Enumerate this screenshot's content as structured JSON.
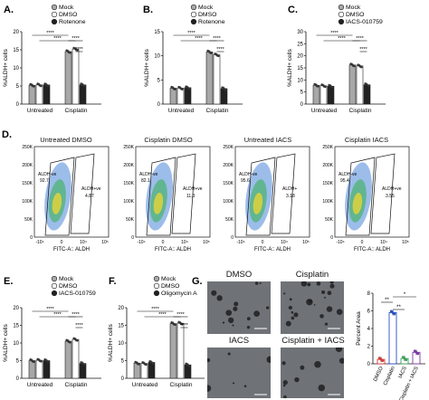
{
  "panels": {
    "A": {
      "label": "A.",
      "ylabel": "%ALDH+ cells",
      "legend": [
        "Mock",
        "DMSO",
        "Rotenone"
      ],
      "groups": [
        "Untreated",
        "Cisplatin"
      ],
      "yticks": [
        "0",
        "5",
        "10",
        "15",
        "20"
      ],
      "ymax": 20,
      "values": [
        [
          5.2,
          5.3,
          5.3
        ],
        [
          14.5,
          15.2,
          5.3
        ]
      ],
      "sig": [
        "****",
        "****",
        "****",
        "****"
      ]
    },
    "B": {
      "label": "B.",
      "ylabel": "%ALDH+ cells",
      "legend": [
        "Mock",
        "DMSO",
        "Rotenone"
      ],
      "groups": [
        "Untreated",
        "Cisplatin"
      ],
      "yticks": [
        "0",
        "5",
        "10",
        "15"
      ],
      "ymax": 15,
      "values": [
        [
          3.3,
          3.3,
          3.4
        ],
        [
          10.8,
          10.2,
          3.2
        ]
      ],
      "sig": [
        "****",
        "****",
        "****",
        "****"
      ]
    },
    "C": {
      "label": "C.",
      "ylabel": "%ALDH+ cells",
      "legend": [
        "Mock",
        "DMSO",
        "IACS-010759"
      ],
      "groups": [
        "Untreated",
        "Cisplatin"
      ],
      "yticks": [
        "0",
        "5",
        "10",
        "15",
        "20",
        "25",
        "30"
      ],
      "ymax": 30,
      "values": [
        [
          7.8,
          7.6,
          7.4
        ],
        [
          16.2,
          15.8,
          8.0
        ]
      ],
      "sig": [
        "****",
        "****",
        "****",
        "****"
      ]
    },
    "D": {
      "label": "D.",
      "plots": [
        {
          "title": "Untreated DMSO",
          "neg_label": "ALDH-ve",
          "neg_val": "92.7",
          "pos_label": "ALDH+ve",
          "pos_val": "4.87"
        },
        {
          "title": "Cisplatin DMSO",
          "neg_label": "ALDH-ve",
          "neg_val": "82.1",
          "pos_label": "ALDH+ve",
          "pos_val": "11.3"
        },
        {
          "title": "Untreated IACS",
          "neg_label": "ALDH-ve",
          "neg_val": "95.6",
          "pos_label": "ALDH+",
          "pos_val": "3.18"
        },
        {
          "title": "Cisplatin IACS",
          "neg_label": "ALDH-ve",
          "neg_val": "95.4",
          "pos_label": "ALDH+ve",
          "pos_val": "3.55"
        }
      ],
      "yticks": [
        "250K",
        "200K",
        "150K",
        "100K",
        "50K",
        "0"
      ],
      "xticks": [
        "-10⁴",
        "0",
        "10⁴",
        "10⁵"
      ],
      "xlabel": "FITC-A:: ALDH"
    },
    "E": {
      "label": "E.",
      "ylabel": "%ALDH+ cells",
      "legend": [
        "Mock",
        "DMSO",
        "IACS-010759"
      ],
      "groups": [
        "Untreated",
        "Cisplatin"
      ],
      "yticks": [
        "0",
        "5",
        "10",
        "15",
        "20"
      ],
      "ymax": 20,
      "values": [
        [
          5.0,
          5.1,
          5.0
        ],
        [
          10.5,
          11.0,
          4.2
        ]
      ],
      "sig": [
        "****",
        "****",
        "****",
        "****"
      ]
    },
    "F": {
      "label": "F.",
      "ylabel": "%ALDH+ cells",
      "legend": [
        "Mock",
        "DMSO",
        "Oligomycin A"
      ],
      "groups": [
        "Untreated",
        "Cisplatin"
      ],
      "yticks": [
        "0",
        "5",
        "10",
        "15",
        "20"
      ],
      "ymax": 20,
      "values": [
        [
          4.3,
          4.2,
          4.5
        ],
        [
          15.5,
          15.6,
          3.8
        ]
      ],
      "sig": [
        "****",
        "****",
        "****",
        "****"
      ]
    },
    "G": {
      "label": "G.",
      "images": [
        "DMSO",
        "Cisplatin",
        "IACS",
        "Cisplatin + IACS"
      ],
      "ylabel": "Percent Area",
      "yticks": [
        "0",
        "2",
        "4",
        "6",
        "8"
      ],
      "ymax": 8,
      "categories": [
        "DMSO",
        "Cisplatin",
        "IACS",
        "Cisplatin + IACS"
      ],
      "values": [
        0.5,
        5.8,
        0.6,
        1.3
      ],
      "sig": [
        "**",
        "**",
        "*"
      ]
    }
  },
  "colors": {
    "mock": "#a8a8a8",
    "dmso": "#ffffff",
    "treat": "#222222",
    "red": "#d73838",
    "blue": "#2b4fc4",
    "green": "#3aa65a",
    "purple": "#7b3aa6"
  }
}
